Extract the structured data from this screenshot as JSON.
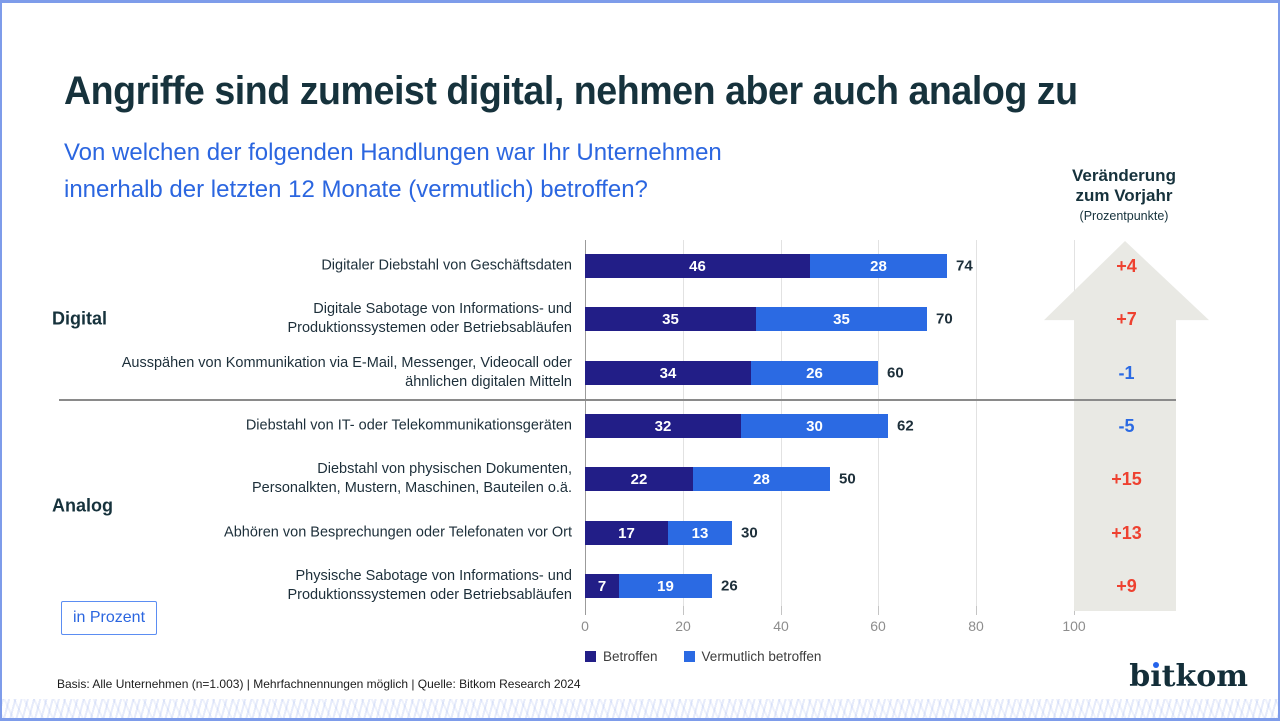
{
  "header": {
    "title": "Angriffe sind zumeist digital, nehmen aber auch analog zu",
    "subtitle_line1": "Von welchen der folgenden Handlungen war Ihr Unternehmen",
    "subtitle_line2": "innerhalb der letzten 12 Monate (vermutlich) betroffen?"
  },
  "change_column": {
    "header_line1": "Veränderung",
    "header_line2": "zum Vorjahr",
    "header_note": "(Prozentpunkte)",
    "values": [
      "+4",
      "+7",
      "-1",
      "-5",
      "+15",
      "+13",
      "+9"
    ],
    "positive_color": "#ee4130",
    "negative_color": "#2b6ae3",
    "arrow_color": "#e9e9e4"
  },
  "chart_data": {
    "type": "bar",
    "orientation": "horizontal-stacked",
    "title": "",
    "xlabel": "",
    "ylabel": "",
    "xlim": [
      0,
      100
    ],
    "xticks": [
      0,
      20,
      40,
      60,
      80,
      100
    ],
    "grid": true,
    "legend_position": "bottom",
    "categories": [
      "Digitaler Diebstahl von Geschäftsdaten",
      "Digitale Sabotage von Informations- und Produktionssystemen oder Betriebsabläufen",
      "Ausspähen von Kommunikation via E-Mail, Messenger, Videocall oder ähnlichen digitalen Mitteln",
      "Diebstahl von IT- oder Telekommunikationsgeräten",
      "Diebstahl von physischen Dokumenten, Personalkten, Mustern, Maschinen, Bauteilen o.ä.",
      "Abhören von Besprechungen oder Telefonaten vor Ort",
      "Physische Sabotage von Informations- und Produktionssystemen oder Betriebsabläufen"
    ],
    "category_lines": [
      [
        "Digitaler Diebstahl von Geschäftsdaten"
      ],
      [
        "Digitale Sabotage von Informations- und",
        "Produktionssystemen oder Betriebsabläufen"
      ],
      [
        "Ausspähen von Kommunikation via E-Mail, Messenger, Videocall oder",
        "ähnlichen digitalen Mitteln"
      ],
      [
        "Diebstahl von IT- oder Telekommunikationsgeräten"
      ],
      [
        "Diebstahl von physischen Dokumenten,",
        "Personalkten, Mustern, Maschinen, Bauteilen o.ä."
      ],
      [
        "Abhören von Besprechungen oder Telefonaten vor Ort"
      ],
      [
        "Physische Sabotage von Informations- und",
        "Produktionssystemen oder Betriebsabläufen"
      ]
    ],
    "groups": [
      {
        "label": "Digital",
        "row_start": 0,
        "row_end": 2
      },
      {
        "label": "Analog",
        "row_start": 3,
        "row_end": 6
      }
    ],
    "series": [
      {
        "name": "Betroffen",
        "color": "#221e87",
        "values": [
          46,
          35,
          34,
          32,
          22,
          17,
          7
        ]
      },
      {
        "name": "Vermutlich betroffen",
        "color": "#2b6ae3",
        "values": [
          28,
          35,
          26,
          30,
          28,
          13,
          19
        ]
      }
    ],
    "totals": [
      74,
      70,
      60,
      62,
      50,
      30,
      26
    ]
  },
  "unit_box_label": "in Prozent",
  "footer": {
    "basis_note": "Basis: Alle Unternehmen (n=1.003) | Mehrfachnennungen möglich | Quelle: Bitkom Research 2024"
  },
  "logo": {
    "text": "bitkom",
    "part_b": "b",
    "part_i_dotless": "ı",
    "part_rest": "tkom",
    "dot_color": "#2563eb"
  }
}
